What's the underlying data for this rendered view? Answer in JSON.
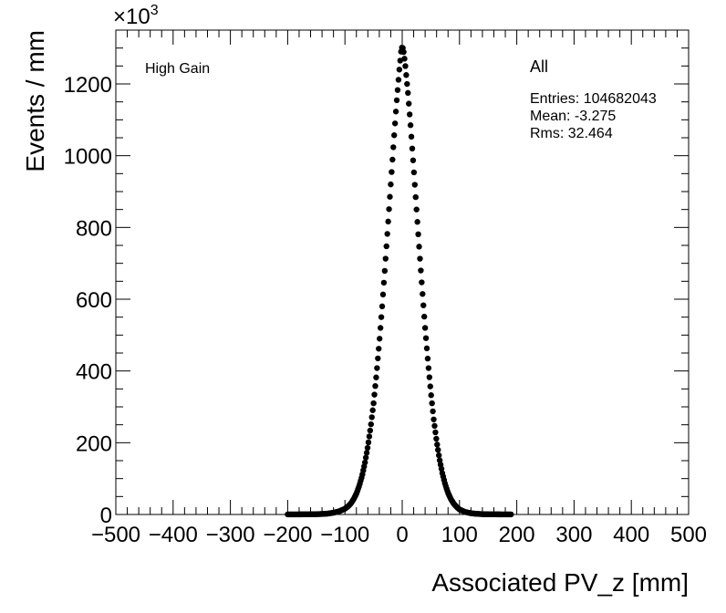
{
  "chart_data": {
    "type": "scatter",
    "xlabel": "Associated PV_z [mm]",
    "ylabel": "Events / mm",
    "y_multiplier": "×10",
    "y_multiplier_exponent": "3",
    "xlim": [
      -500,
      500
    ],
    "ylim": [
      0,
      1350
    ],
    "x_ticks": [
      -500,
      -400,
      -300,
      -200,
      -100,
      0,
      100,
      200,
      300,
      400,
      500
    ],
    "y_ticks": [
      0,
      200,
      400,
      600,
      800,
      1000,
      1200
    ],
    "annotation": "High Gain",
    "stats": {
      "title": "All",
      "entries": "Entries: 104682043",
      "mean": "Mean: -3.275",
      "rms": "Rms: 32.464"
    },
    "series": [
      {
        "x": [
          -200,
          -190,
          -180,
          -170,
          -160,
          -150,
          -140,
          -130,
          -120,
          -110,
          -100,
          -95,
          -90,
          -85,
          -80,
          -75,
          -70,
          -65,
          -60,
          -55,
          -50,
          -45,
          -40,
          -35,
          -30,
          -25,
          -20,
          -15,
          -10,
          -5,
          -2,
          0,
          2,
          5,
          10,
          15,
          20,
          25,
          30,
          35,
          40,
          45,
          50,
          55,
          60,
          65,
          70,
          75,
          80,
          85,
          90,
          95,
          100,
          110,
          120,
          130,
          140,
          150,
          160,
          170,
          180,
          190
        ],
        "y": [
          0.2,
          0.2,
          0.3,
          0.4,
          0.6,
          0.9,
          1.4,
          2.5,
          5,
          9,
          16,
          22,
          30,
          42,
          58,
          80,
          108,
          145,
          190,
          245,
          310,
          390,
          480,
          580,
          690,
          805,
          920,
          1035,
          1145,
          1240,
          1290,
          1305,
          1295,
          1258,
          1175,
          1075,
          965,
          850,
          735,
          625,
          520,
          425,
          340,
          265,
          205,
          155,
          115,
          84,
          60,
          43,
          30,
          21,
          14,
          7,
          3.5,
          1.8,
          1,
          0.6,
          0.4,
          0.3,
          0.2,
          0.2
        ],
        "color": "#000000"
      }
    ]
  }
}
